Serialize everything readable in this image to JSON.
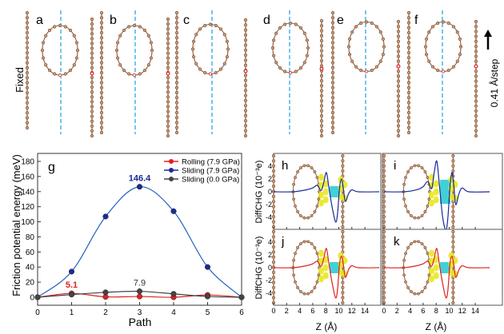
{
  "top_panels": {
    "labels": [
      "a",
      "b",
      "c",
      "d",
      "e",
      "f"
    ],
    "fixed_label": "Fixed",
    "step_label": "0.41 Å/step",
    "colors": {
      "carbon": "#8b5a3c",
      "marked_atom": "#e02020",
      "guide_line": "#29a8e0"
    }
  },
  "chart_data": [
    {
      "type": "line",
      "panel_label": "g",
      "xlabel": "Path",
      "ylabel": "Friction potential energy (meV)",
      "x": [
        0,
        1,
        2,
        3,
        4,
        5,
        6
      ],
      "xlim": [
        0,
        6
      ],
      "ylim": [
        -10,
        190
      ],
      "xticks": [
        "0",
        "1",
        "2",
        "3",
        "4",
        "5",
        "6"
      ],
      "yticks": [
        "0",
        "20",
        "40",
        "60",
        "80",
        "100",
        "120",
        "140",
        "160",
        "180"
      ],
      "legend_position": "top-right",
      "series": [
        {
          "name": "Rolling (7.9 GPa)",
          "color": "#e02020",
          "values": [
            0,
            5.1,
            0.5,
            1,
            0,
            3,
            0
          ]
        },
        {
          "name": "Sliding (7.9 GPa)",
          "color": "#1a2a9a",
          "values": [
            0,
            34,
            107,
            146.4,
            114,
            40,
            0
          ]
        },
        {
          "name": "Sliding (0.0 GPa)",
          "color": "#444444",
          "values": [
            0,
            3.5,
            6.5,
            7.9,
            4.5,
            1,
            0
          ]
        }
      ],
      "annotations": [
        {
          "text": "146.4",
          "series": 1,
          "x": 3,
          "color": "#1a2a9a"
        },
        {
          "text": "5.1",
          "series": 0,
          "x": 1,
          "color": "#e02020"
        },
        {
          "text": "7.9",
          "series": 2,
          "x": 3,
          "color": "#333333"
        }
      ]
    },
    {
      "type": "line",
      "panels": [
        "h",
        "i",
        "j",
        "k"
      ],
      "xlabel": "Z (Å)",
      "ylabel": "DiffCHG (10⁻³e)",
      "xlim": [
        0,
        16.2
      ],
      "ylim": [
        -6,
        6
      ],
      "xticks": [
        "0",
        "2",
        "4",
        "6",
        "8",
        "10",
        "12",
        "14"
      ],
      "yticks": [
        "-4",
        "-2",
        "0",
        "2",
        "4"
      ],
      "series": [
        {
          "panel": "h",
          "color": "#1a2a9a",
          "x": [
            0,
            3,
            5,
            6,
            6.7,
            7.3,
            7.7,
            8.1,
            8.5,
            9,
            9.5,
            9.8,
            10.1,
            10.4,
            10.7,
            11,
            11.5,
            12,
            13,
            16.2
          ],
          "values": [
            0,
            0,
            0.3,
            0.6,
            1,
            0.2,
            1.5,
            3,
            0.5,
            -2.5,
            -4.7,
            -3.5,
            0.5,
            2,
            0.5,
            -1.5,
            -0.3,
            0.3,
            0,
            0
          ]
        },
        {
          "panel": "i",
          "color": "#1a2a9a",
          "x": [
            0,
            3,
            5,
            6,
            6.7,
            7.3,
            7.7,
            8.1,
            8.5,
            9,
            9.5,
            9.8,
            10.1,
            10.4,
            10.7,
            11,
            11.5,
            12,
            13,
            16.2
          ],
          "values": [
            0,
            0,
            0.3,
            0.8,
            1.6,
            0.5,
            3,
            4.8,
            1,
            -4,
            -6,
            -4,
            0.5,
            3,
            1,
            -2,
            -0.3,
            0.6,
            0,
            0
          ]
        },
        {
          "panel": "j",
          "color": "#e02020",
          "x": [
            0,
            3,
            5,
            6,
            6.7,
            7.3,
            7.7,
            8.1,
            8.5,
            9,
            9.5,
            9.8,
            10.1,
            10.4,
            10.7,
            11,
            11.5,
            12,
            13,
            16.2
          ],
          "values": [
            0,
            0,
            0.3,
            0.6,
            1,
            0.2,
            1.5,
            3,
            0.5,
            -2.5,
            -4.7,
            -3.5,
            0.5,
            1.8,
            0.5,
            -1.5,
            -0.3,
            0.3,
            0,
            0
          ]
        },
        {
          "panel": "k",
          "color": "#e02020",
          "x": [
            0,
            3,
            5,
            6,
            6.7,
            7.3,
            7.7,
            8.1,
            8.5,
            9,
            9.5,
            9.8,
            10.1,
            10.4,
            10.7,
            11,
            11.5,
            12,
            13,
            16.2
          ],
          "values": [
            0,
            0,
            0.3,
            0.6,
            1,
            0.2,
            1.5,
            3,
            0.5,
            -2.5,
            -4.7,
            -3.5,
            0.5,
            1.8,
            0.5,
            -1.5,
            -0.3,
            0.3,
            0,
            0
          ]
        }
      ],
      "isosurface_colors": {
        "positive": "#e8e820",
        "negative": "#20c8d0"
      }
    }
  ]
}
